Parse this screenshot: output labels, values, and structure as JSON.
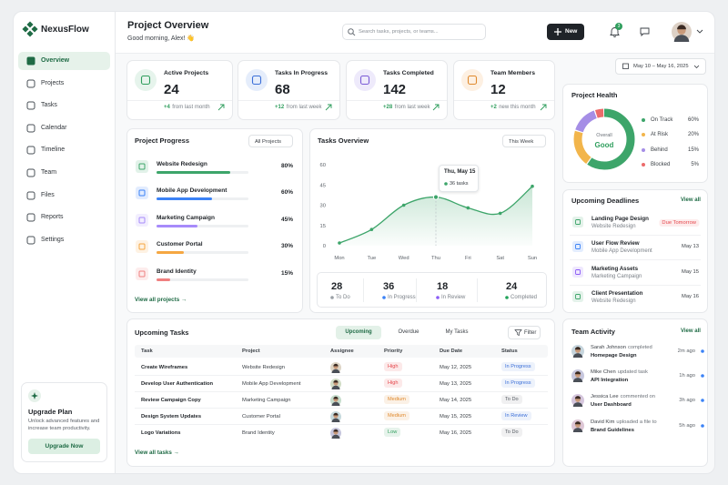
{
  "brand": "NexusFlow",
  "nav": [
    "Overview",
    "Projects",
    "Tasks",
    "Calendar",
    "Timeline",
    "Team",
    "Files",
    "Reports",
    "Settings"
  ],
  "upgrade": {
    "title": "Upgrade Plan",
    "text": "Unlock advanced features and increase team productivity.",
    "button": "Upgrade Now"
  },
  "header": {
    "title": "Project Overview",
    "greeting": "Good morning, Alex! 👋",
    "search": "Search tasks, projects, or teams...",
    "new_button": "New",
    "notifications": 3
  },
  "date_range": "May 10 – May 16, 2025",
  "stats": [
    {
      "label": "Active Projects",
      "value": 24,
      "change": "+4",
      "period": "from last month",
      "color": "#2f9e5d",
      "bg": "#e6f4ec"
    },
    {
      "label": "Tasks In Progress",
      "value": 68,
      "change": "+12",
      "period": "from last week",
      "color": "#3b6fd8",
      "bg": "#e5edfb"
    },
    {
      "label": "Tasks Completed",
      "value": 142,
      "change": "+28",
      "period": "from last week",
      "color": "#7a5bd6",
      "bg": "#eeeafb"
    },
    {
      "label": "Team Members",
      "value": 12,
      "change": "+2",
      "period": "new this month",
      "color": "#e08a2e",
      "bg": "#fdf0e2"
    }
  ],
  "project_progress": {
    "title": "Project Progress",
    "filter": "All Projects",
    "link": "View all projects →",
    "items": [
      {
        "name": "Website Redesign",
        "percent": 80,
        "percent_label": "80%",
        "color": "#3da56a"
      },
      {
        "name": "Mobile App Development",
        "percent": 60,
        "percent_label": "60%",
        "color": "#3b82f6"
      },
      {
        "name": "Marketing Campaign",
        "percent": 45,
        "percent_label": "45%",
        "color": "#a78bfa"
      },
      {
        "name": "Customer Portal",
        "percent": 30,
        "percent_label": "30%",
        "color": "#f5a742"
      },
      {
        "name": "Brand Identity",
        "percent": 15,
        "percent_label": "15%",
        "color": "#f08080"
      }
    ]
  },
  "tasks_overview": {
    "title": "Tasks Overview",
    "filter": "This Week",
    "type": "line",
    "color": "#3da56a",
    "categories": [
      "Mon",
      "Tue",
      "Wed",
      "Thu",
      "Fri",
      "Sat",
      "Sun"
    ],
    "values": [
      2,
      12,
      30,
      36,
      28,
      24,
      44
    ],
    "ylim": [
      0,
      60
    ],
    "yticks": [
      0,
      15,
      30,
      45,
      60
    ],
    "tooltip": {
      "title": "Thu, May 15",
      "text": "36 tasks"
    },
    "summary": [
      {
        "value": 28,
        "label": "To Do",
        "color": "#9aa0a6"
      },
      {
        "value": 36,
        "label": "In Progress",
        "color": "#3b82f6"
      },
      {
        "value": 18,
        "label": "In Review",
        "color": "#8b5cf6"
      },
      {
        "value": 24,
        "label": "Completed",
        "color": "#22a35a"
      }
    ]
  },
  "project_health": {
    "title": "Project Health",
    "center_top": "Overall",
    "center": "Good",
    "items": [
      {
        "name": "On Track",
        "value": 60,
        "label": "60%",
        "color": "#3da56a"
      },
      {
        "name": "At Risk",
        "value": 20,
        "label": "20%",
        "color": "#f2b54b"
      },
      {
        "name": "Behind",
        "value": 15,
        "label": "15%",
        "color": "#a58ee6"
      },
      {
        "name": "Blocked",
        "value": 5,
        "label": "5%",
        "color": "#ec6b6b"
      }
    ]
  },
  "upcoming_tasks": {
    "title": "Upcoming Tasks",
    "tabs": [
      "Upcoming",
      "Overdue",
      "My Tasks"
    ],
    "filter": "Filter",
    "link": "View all tasks →",
    "columns": [
      "Task",
      "Project",
      "Assignee",
      "Priority",
      "Due Date",
      "Status"
    ],
    "rows": [
      {
        "task": "Create Wireframes",
        "project": "Website Redesign",
        "priority": "High",
        "priority_color": "#e5484d",
        "due": "May 12, 2025",
        "status": "In Progress",
        "status_color": "#3b6fd8"
      },
      {
        "task": "Develop User Authentication",
        "project": "Mobile App Development",
        "priority": "High",
        "priority_color": "#e5484d",
        "due": "May 13, 2025",
        "status": "In Progress",
        "status_color": "#3b6fd8"
      },
      {
        "task": "Review Campaign Copy",
        "project": "Marketing Campaign",
        "priority": "Medium",
        "priority_color": "#e08a2e",
        "due": "May 14, 2025",
        "status": "To Do",
        "status_color": "#555b62"
      },
      {
        "task": "Design System Updates",
        "project": "Customer Portal",
        "priority": "Medium",
        "priority_color": "#e08a2e",
        "due": "May 15, 2025",
        "status": "In Review",
        "status_color": "#3b6fd8"
      },
      {
        "task": "Logo Variations",
        "project": "Brand Identity",
        "priority": "Low",
        "priority_color": "#2f9e5d",
        "due": "May 16, 2025",
        "status": "To Do",
        "status_color": "#555b62"
      }
    ]
  },
  "deadlines": {
    "title": "Upcoming Deadlines",
    "link": "View all",
    "items": [
      {
        "name": "Landing Page Design",
        "project": "Website Redesign",
        "due": "Due Tomorrow",
        "due_color": "#e5484d"
      },
      {
        "name": "User Flow Review",
        "project": "Mobile App Development",
        "due": "May 13",
        "due_color": "#3a3f45"
      },
      {
        "name": "Marketing Assets",
        "project": "Marketing Campaign",
        "due": "May 15",
        "due_color": "#3a3f45"
      },
      {
        "name": "Client Presentation",
        "project": "Website Redesign",
        "due": "May 16",
        "due_color": "#3a3f45"
      }
    ]
  },
  "activity": {
    "title": "Team Activity",
    "link": "View all",
    "items": [
      {
        "user": "Sarah Johnson",
        "action": "completed",
        "target": "Homepage Design",
        "time": "2m ago"
      },
      {
        "user": "Mike Chen",
        "action": "updated task",
        "target": "API Integration",
        "time": "1h ago"
      },
      {
        "user": "Jessica Lee",
        "action": "commented on",
        "target": "User Dashboard",
        "time": "3h ago"
      },
      {
        "user": "David Kim",
        "action": "uploaded a file to",
        "target": "Brand Guidelines",
        "time": "5h ago"
      }
    ]
  }
}
